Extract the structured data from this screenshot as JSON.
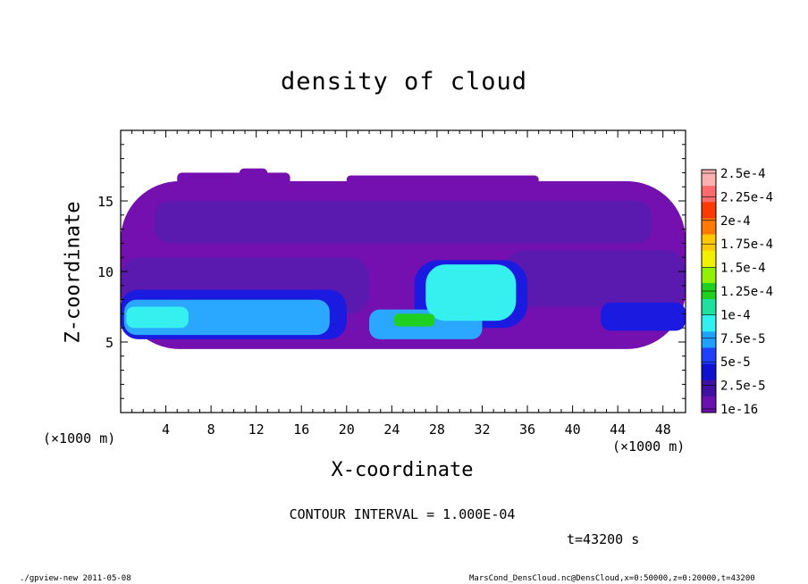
{
  "chart_data": {
    "type": "heatmap",
    "title": "density of cloud",
    "xlabel": "X-coordinate",
    "ylabel": "Z-coordinate",
    "x_unit_left": "(×1000 m)",
    "x_unit_right": "(×1000 m)",
    "xlim": [
      0,
      50
    ],
    "ylim": [
      0,
      20
    ],
    "x_ticks": [
      4,
      8,
      12,
      16,
      20,
      24,
      28,
      32,
      36,
      40,
      44,
      48
    ],
    "y_ticks": [
      5,
      10,
      15
    ],
    "colorbar": {
      "labels": [
        "2.5e-4",
        "2.25e-4",
        "2e-4",
        "1.75e-4",
        "1.5e-4",
        "1.25e-4",
        "1e-4",
        "7.5e-5",
        "5e-5",
        "2.5e-5",
        "1e-16"
      ],
      "colors": [
        "#ffb0b0",
        "#ff6a6a",
        "#ff3a00",
        "#ff7a00",
        "#ffc800",
        "#f0f000",
        "#90f000",
        "#20d020",
        "#20e0a0",
        "#30f0f0",
        "#20a0ff",
        "#2040ff",
        "#1010d0",
        "#4010a0",
        "#6a10b0"
      ]
    },
    "regions": [
      {
        "level": "1e-16",
        "color": "#7410b0",
        "x0": 0,
        "x1": 50,
        "z0": 4.5,
        "z1": 16.4
      },
      {
        "level": "1e-16",
        "color": "#7410b0",
        "x0": 5,
        "x1": 15,
        "z0": 16.0,
        "z1": 17.0
      },
      {
        "level": "1e-16",
        "color": "#7410b0",
        "x0": 20,
        "x1": 37,
        "z0": 16.0,
        "z1": 16.8
      },
      {
        "level": "1e-16",
        "color": "#7410b0",
        "x0": 10.5,
        "x1": 13,
        "z0": 16.3,
        "z1": 17.3
      },
      {
        "level": "2.5e-5",
        "color": "#5a1ab0",
        "x0": 3,
        "x1": 47,
        "z0": 12.0,
        "z1": 15.0
      },
      {
        "level": "2.5e-5",
        "color": "#5a1ab0",
        "x0": 0,
        "x1": 22,
        "z0": 7.0,
        "z1": 11.0
      },
      {
        "level": "2.5e-5",
        "color": "#5a1ab0",
        "x0": 34,
        "x1": 50,
        "z0": 7.5,
        "z1": 11.5
      },
      {
        "level": "5e-5",
        "color": "#1a1ae0",
        "x0": 0,
        "x1": 20,
        "z0": 5.2,
        "z1": 8.7
      },
      {
        "level": "5e-5",
        "color": "#1a1ae0",
        "x0": 26,
        "x1": 36,
        "z0": 6.0,
        "z1": 10.8
      },
      {
        "level": "5e-5",
        "color": "#1a1ae0",
        "x0": 42.5,
        "x1": 50,
        "z0": 5.8,
        "z1": 7.8
      },
      {
        "level": "7.5e-5",
        "color": "#2aa8ff",
        "x0": 0.3,
        "x1": 18.5,
        "z0": 5.5,
        "z1": 8.0
      },
      {
        "level": "7.5e-5",
        "color": "#2aa8ff",
        "x0": 22,
        "x1": 32,
        "z0": 5.2,
        "z1": 7.3
      },
      {
        "level": "1e-4",
        "color": "#36f0f0",
        "x0": 27,
        "x1": 35,
        "z0": 6.5,
        "z1": 10.5
      },
      {
        "level": "1e-4",
        "color": "#36f0f0",
        "x0": 0.5,
        "x1": 6,
        "z0": 6.0,
        "z1": 7.5
      },
      {
        "level": "1.25e-4",
        "color": "#20d020",
        "x0": 24.2,
        "x1": 27.8,
        "z0": 6.1,
        "z1": 7.0
      }
    ]
  },
  "contour_text": "CONTOUR INTERVAL = 1.000E-04",
  "time_text": "t=43200 s",
  "footer_left": "./gpview-new   2011-05-08",
  "footer_right": "MarsCond_DensCloud.nc@DensCloud,x=0:50000,z=0:20000,t=43200"
}
